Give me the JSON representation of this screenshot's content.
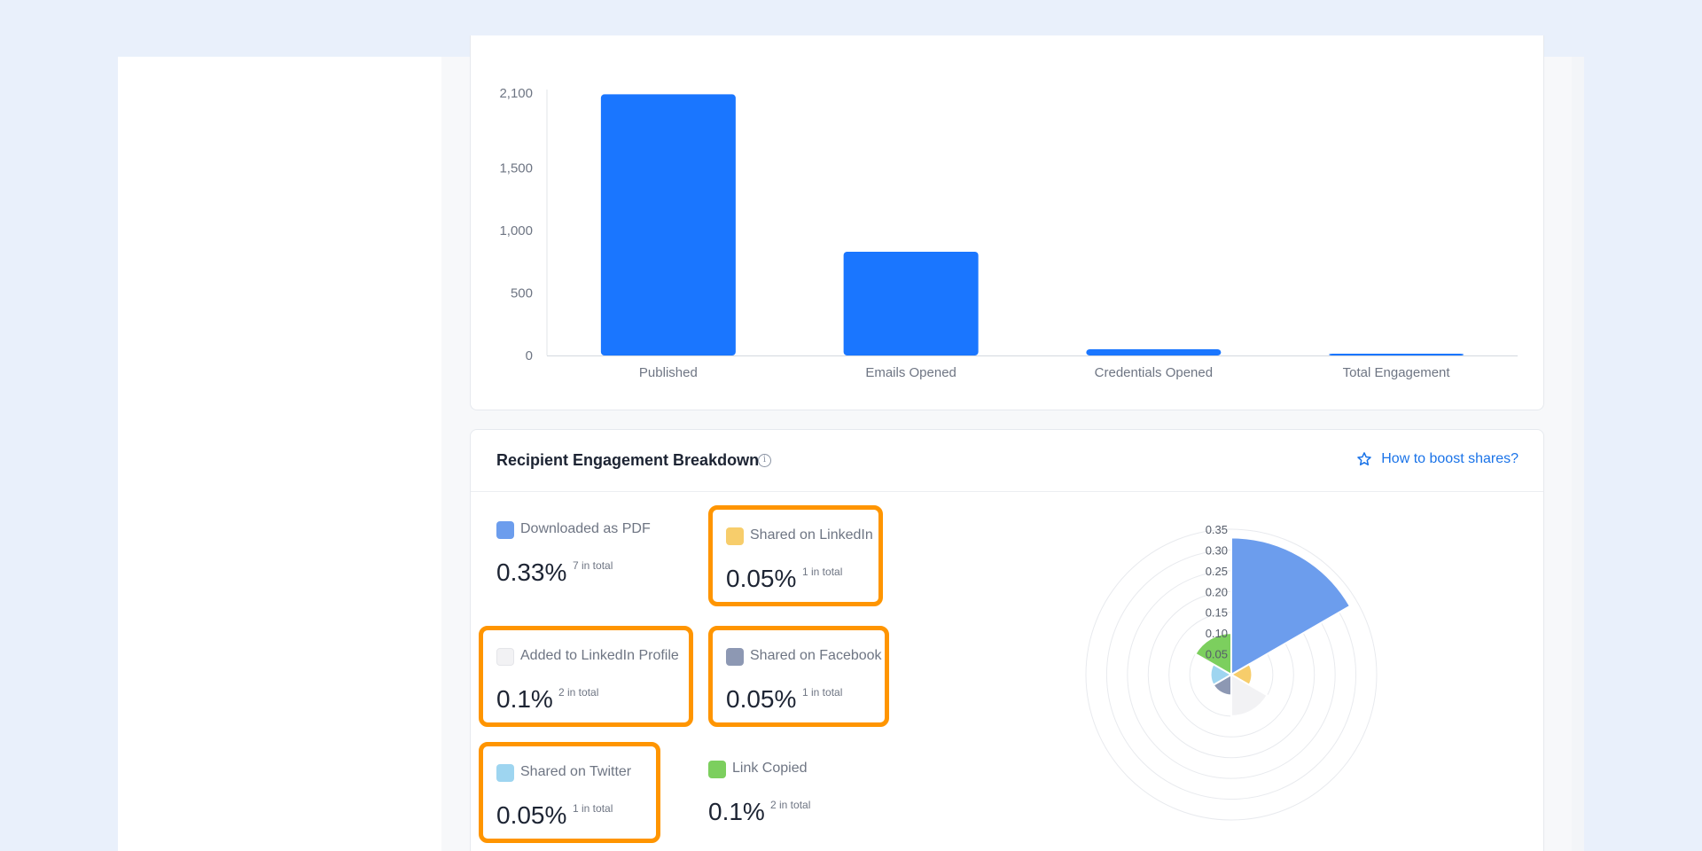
{
  "chart_data": [
    {
      "type": "bar",
      "categories": [
        "Published",
        "Emails Opened",
        "Credentials Opened",
        "Total Engagement"
      ],
      "values": [
        2090,
        830,
        50,
        12
      ],
      "yticks": [
        "0",
        "500",
        "1,000",
        "1,500",
        "2,100"
      ],
      "ytick_values": [
        0,
        500,
        1000,
        1500,
        2100
      ],
      "ylim": [
        0,
        2100
      ],
      "color": "#1a76ff",
      "grid": false
    },
    {
      "type": "polar-area",
      "series": [
        {
          "name": "Downloaded as PDF",
          "value": 0.33,
          "color": "#6c9ded"
        },
        {
          "name": "Shared on LinkedIn",
          "value": 0.05,
          "color": "#f7cd6b"
        },
        {
          "name": "Added to LinkedIn Profile",
          "value": 0.1,
          "color": "#f2f2f4"
        },
        {
          "name": "Shared on Facebook",
          "value": 0.05,
          "color": "#8d98b3"
        },
        {
          "name": "Shared on Twitter",
          "value": 0.05,
          "color": "#9ed5f0"
        },
        {
          "name": "Link Copied",
          "value": 0.1,
          "color": "#7ccf5e"
        }
      ],
      "rticks": [
        "0.05",
        "0.10",
        "0.15",
        "0.20",
        "0.25",
        "0.30",
        "0.35"
      ],
      "rmax": 0.35
    }
  ],
  "breakdown": {
    "title": "Recipient Engagement Breakdown",
    "info_icon": "info-circle-icon",
    "boost_link": "How to boost shares?",
    "boost_icon": "star-icon",
    "tiles": [
      {
        "label": "Downloaded as PDF",
        "percent": "0.33%",
        "total": "7 in total",
        "color": "#6c9ded",
        "highlighted": false
      },
      {
        "label": "Shared on LinkedIn",
        "percent": "0.05%",
        "total": "1 in total",
        "color": "#f7cd6b",
        "highlighted": true
      },
      {
        "label": "Added to LinkedIn Profile",
        "percent": "0.1%",
        "total": "2 in total",
        "color": "#f2f2f4",
        "highlighted": true
      },
      {
        "label": "Shared on Facebook",
        "percent": "0.05%",
        "total": "1 in total",
        "color": "#8d98b3",
        "highlighted": true
      },
      {
        "label": "Shared on Twitter",
        "percent": "0.05%",
        "total": "1 in total",
        "color": "#9ed5f0",
        "highlighted": true
      },
      {
        "label": "Link Copied",
        "percent": "0.1%",
        "total": "2 in total",
        "color": "#7ccf5e",
        "highlighted": false
      }
    ]
  },
  "colors": {
    "highlight": "#ff9500",
    "accent": "#1a73e8",
    "frame": "#e9f0fb"
  }
}
